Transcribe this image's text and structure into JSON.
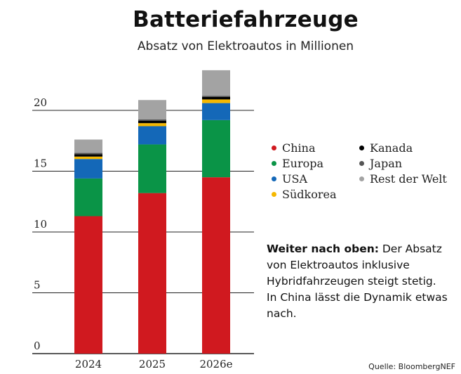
{
  "chart_data": {
    "type": "bar",
    "stacked": true,
    "title": "Batteriefahrzeuge",
    "subtitle": "Absatz von Elektroautos in Millionen",
    "categories": [
      "2024",
      "2025",
      "2026e"
    ],
    "yticks": [
      0,
      5,
      10,
      15,
      20
    ],
    "ylim": [
      0,
      24
    ],
    "grid": true,
    "legend_position": "right",
    "series": [
      {
        "name": "China",
        "color": "#d0191f",
        "values": [
          11.3,
          13.2,
          14.5
        ]
      },
      {
        "name": "Europa",
        "color": "#0a9447",
        "values": [
          3.1,
          4.0,
          4.7
        ]
      },
      {
        "name": "USA",
        "color": "#1468b8",
        "values": [
          1.6,
          1.5,
          1.4
        ]
      },
      {
        "name": "Südkorea",
        "color": "#f5b800",
        "values": [
          0.2,
          0.25,
          0.3
        ]
      },
      {
        "name": "Kanada",
        "color": "#000000",
        "values": [
          0.2,
          0.2,
          0.2
        ]
      },
      {
        "name": "Japan",
        "color": "#555555",
        "values": [
          0.1,
          0.1,
          0.1
        ]
      },
      {
        "name": "Rest der Welt",
        "color": "#a3a3a3",
        "values": [
          1.1,
          1.6,
          2.1
        ]
      }
    ]
  },
  "legend_layout": {
    "columns": [
      [
        "China",
        "Europa",
        "USA",
        "Südkorea"
      ],
      [
        "Kanada",
        "Japan",
        "Rest der Welt"
      ]
    ]
  },
  "note": {
    "lead": "Weiter nach oben:",
    "text": " Der Absatz von Elektroautos inklusive Hybridfahrzeugen steigt stetig. In China lässt die Dynamik etwas nach."
  },
  "source": "Quelle: BloombergNEF"
}
